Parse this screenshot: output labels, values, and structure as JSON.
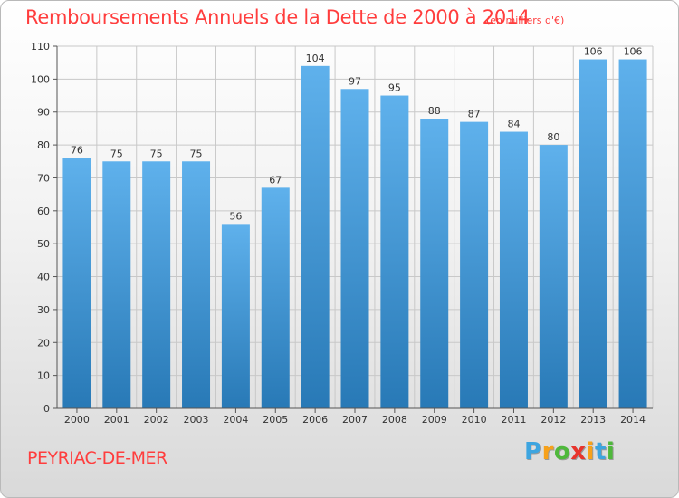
{
  "header": {
    "title": "Remboursements Annuels de la Dette de 2000 à 2014",
    "unit": "(en milliers d'€)"
  },
  "footer": {
    "place": "PEYRIAC-DE-MER",
    "logo_text": "Proxiti",
    "logo_letters": [
      "P",
      "r",
      "o",
      "x",
      "i",
      "t",
      "i"
    ],
    "logo_colors": [
      "#3da5e0",
      "#f7a11a",
      "#4fb83c",
      "#e8342c",
      "#f7a11a",
      "#3da5e0",
      "#4fb83c"
    ]
  },
  "chart_data": {
    "type": "bar",
    "title": "Remboursements Annuels de la Dette de 2000 à 2014",
    "subtitle": "(en milliers d'€)",
    "xlabel": "",
    "ylabel": "",
    "categories": [
      "2000",
      "2001",
      "2002",
      "2003",
      "2004",
      "2005",
      "2006",
      "2007",
      "2008",
      "2009",
      "2010",
      "2011",
      "2012",
      "2013",
      "2014"
    ],
    "values": [
      76,
      75,
      75,
      75,
      56,
      67,
      104,
      97,
      95,
      88,
      87,
      84,
      80,
      106,
      106
    ],
    "ylim": [
      0,
      110
    ],
    "yticks": [
      0,
      10,
      20,
      30,
      40,
      50,
      60,
      70,
      80,
      90,
      100,
      110
    ],
    "grid": true,
    "bar_color_light": "#5fb1ec",
    "bar_color_dark": "#2879b6",
    "grid_color": "#c8c8c8"
  }
}
